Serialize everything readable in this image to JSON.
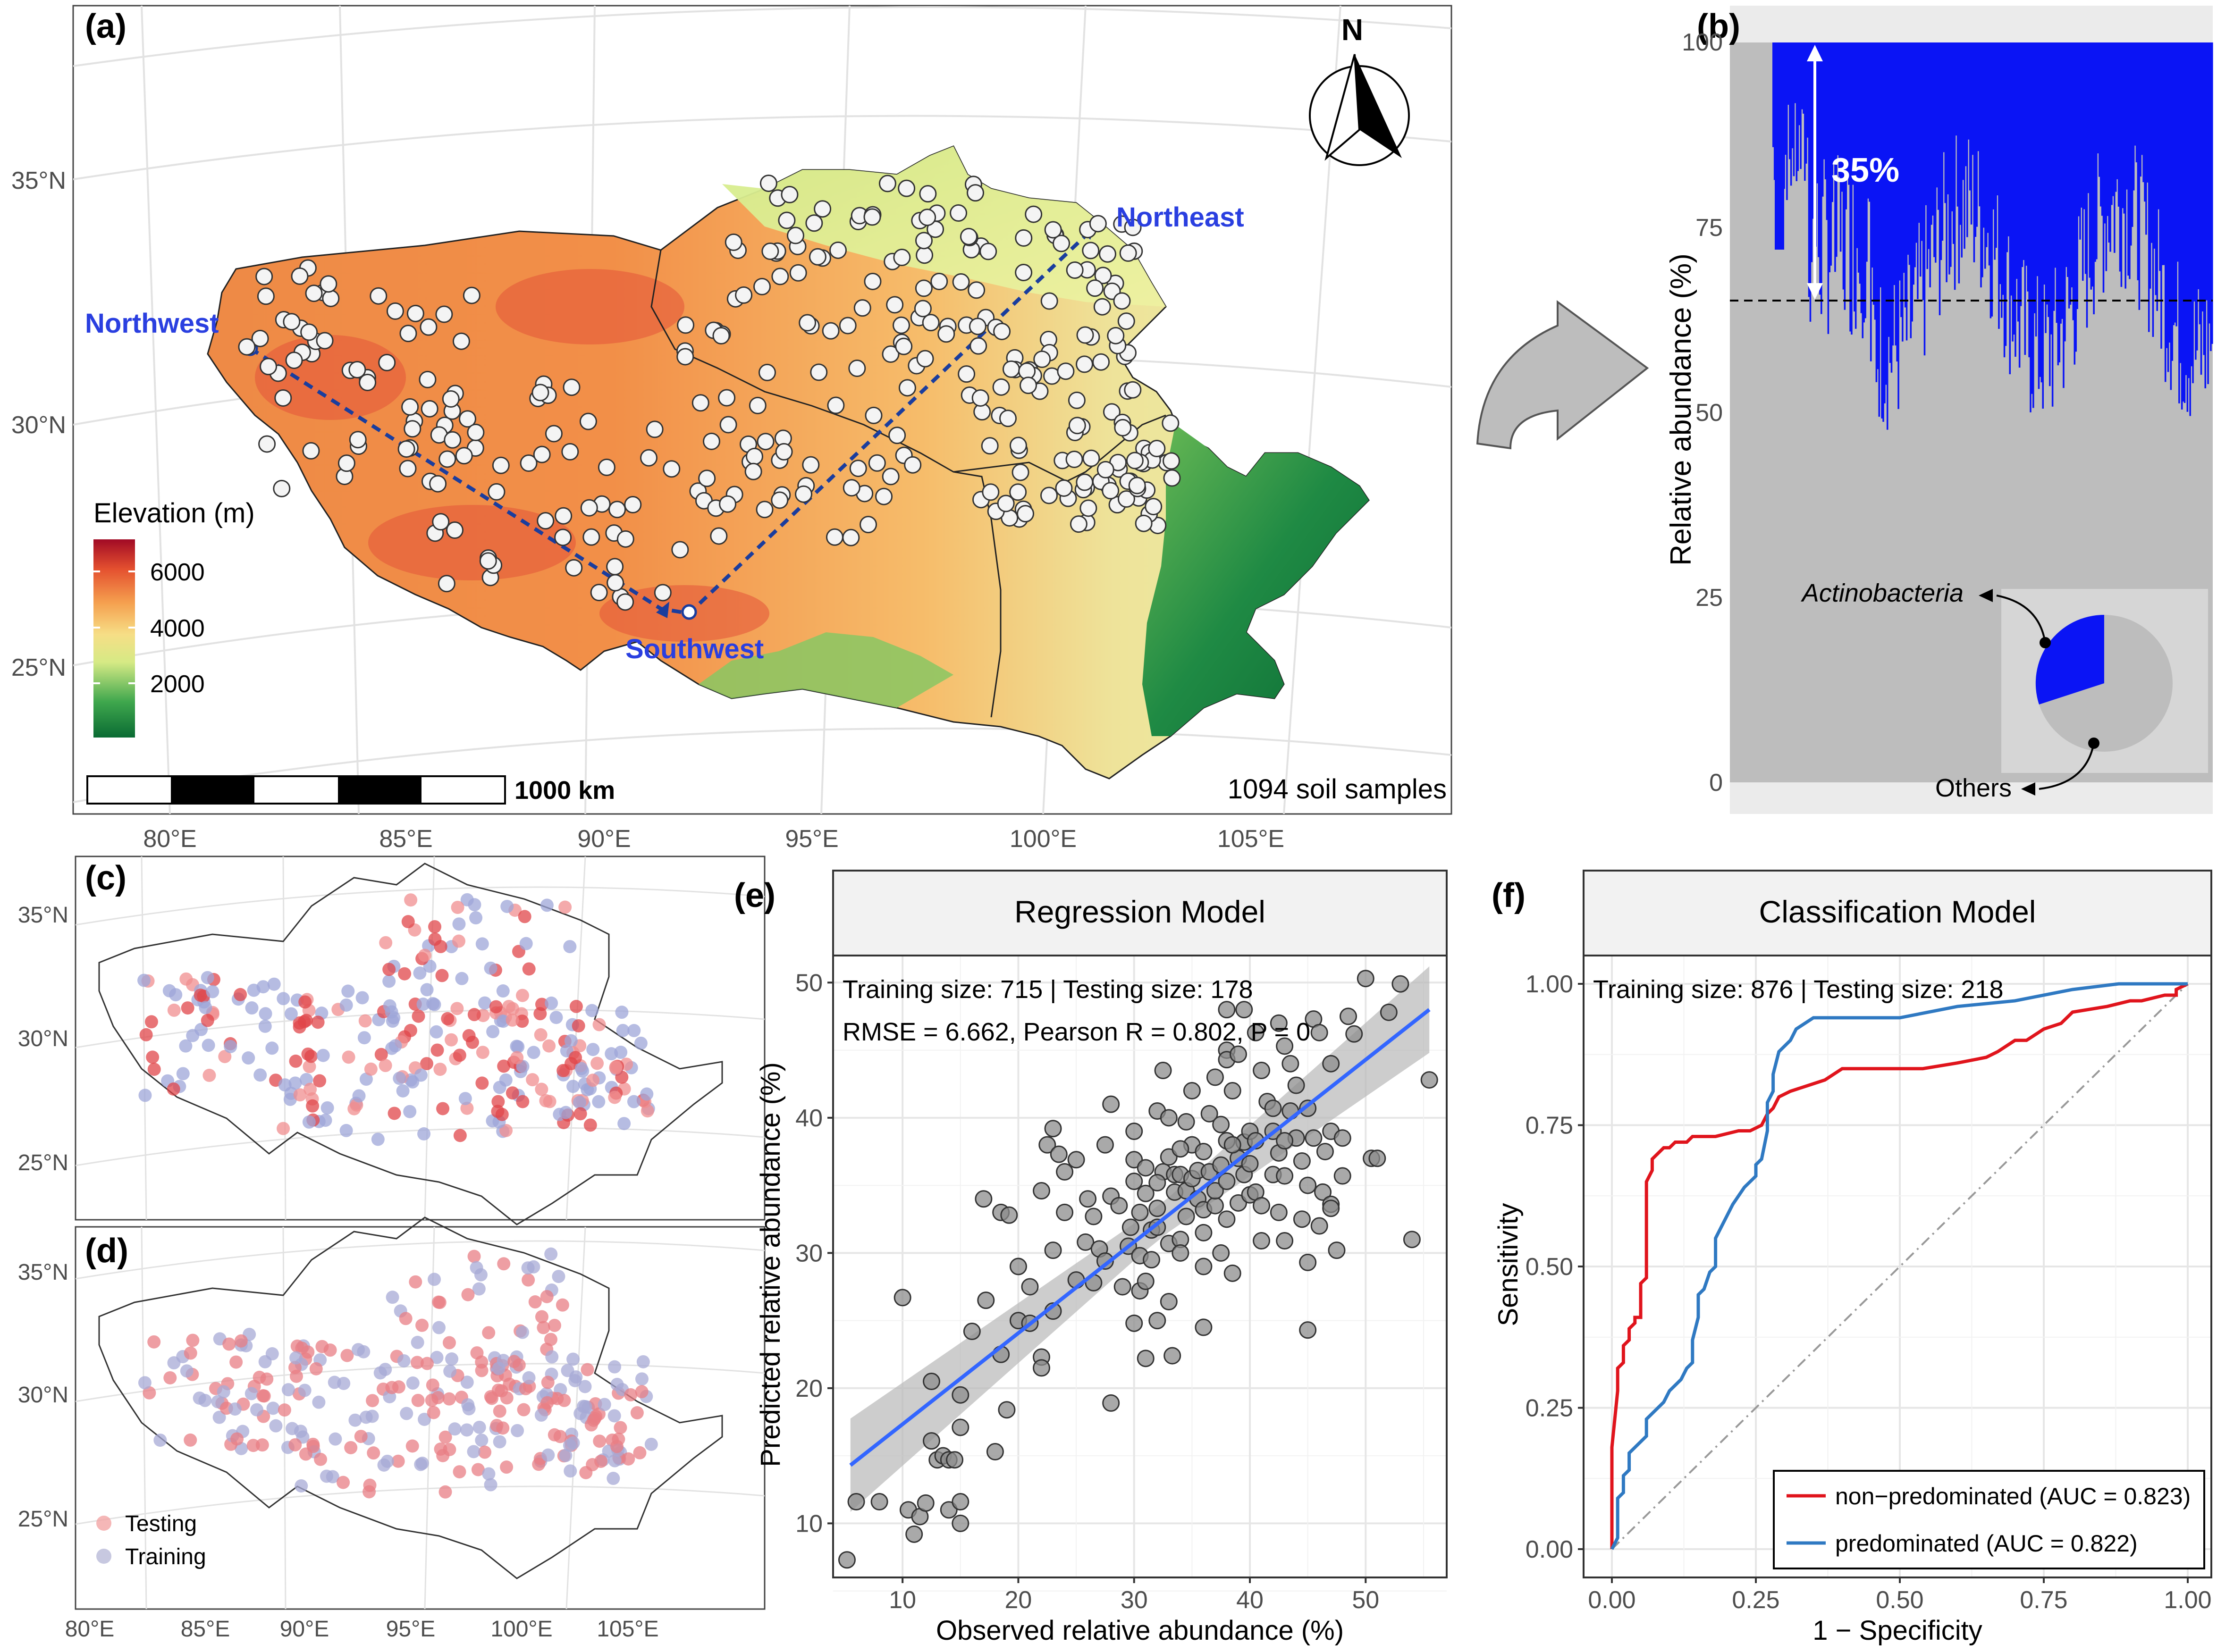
{
  "panels": {
    "a": {
      "label": "(a)",
      "north": "N",
      "legend_title": "Elevation (m)",
      "legend_ticks": [
        "6000",
        "4000",
        "2000"
      ],
      "scale_label": "1000 km",
      "samples_text": "1094 soil samples",
      "region_labels": {
        "nw": "Northwest",
        "ne": "Northeast",
        "sw": "Southwest"
      },
      "lat_ticks": [
        "35°N",
        "30°N",
        "25°N"
      ],
      "lon_ticks": [
        "80°E",
        "85°E",
        "90°E",
        "95°E",
        "100°E",
        "105°E"
      ]
    },
    "b": {
      "label": "(b)",
      "ylabel": "Relative abundance (%)",
      "yticks": [
        "100",
        "75",
        "50",
        "25",
        "0"
      ],
      "arrow_label": "35%",
      "pie_label_top": "Actinobacteria",
      "pie_label_bottom": "Others"
    },
    "c": {
      "label": "(c)",
      "lat_ticks": [
        "35°N",
        "30°N",
        "25°N"
      ]
    },
    "d": {
      "label": "(d)",
      "lat_ticks": [
        "35°N",
        "30°N",
        "25°N"
      ],
      "lon_ticks": [
        "80°E",
        "85°E",
        "90°E",
        "95°E",
        "100°E",
        "105°E"
      ],
      "legend": [
        "Testing",
        "Training"
      ]
    },
    "e": {
      "label": "(e)",
      "strip_title": "Regression Model",
      "line1": "Training size: 715 | Testing  size: 178",
      "line2": "RMSE = 6.662, Pearson R = 0.802, P = 0",
      "xlabel": "Observed relative abundance (%)",
      "ylabel": "Predicted  relative abundance (%)",
      "xticks": [
        "10",
        "20",
        "30",
        "40",
        "50"
      ],
      "yticks": [
        "10",
        "20",
        "30",
        "40",
        "50"
      ]
    },
    "f": {
      "label": "(f)",
      "strip_title": "Classification Model",
      "line1": "Training size: 876 | Testing  size: 218",
      "xlabel": "1 − Specificity",
      "ylabel": "Sensitivity",
      "xticks": [
        "0.00",
        "0.25",
        "0.50",
        "0.75",
        "1.00"
      ],
      "yticks": [
        "1.00",
        "0.75",
        "0.50",
        "0.25",
        "0.00"
      ],
      "legend": [
        "non−predominated (AUC = 0.823)",
        "predominated (AUC = 0.822)"
      ]
    }
  },
  "colors": {
    "blue": "#0a14f5",
    "gray": "#bfbfbf",
    "roc_red": "#e0141c",
    "roc_blue": "#2f79c2",
    "fit_line": "#3366ff",
    "region_text": "#2a3fe0"
  },
  "chart_data": [
    {
      "type": "scatter",
      "title": "Regression Model",
      "xlabel": "Observed relative abundance (%)",
      "ylabel": "Predicted  relative abundance (%)",
      "xlim": [
        4,
        57
      ],
      "ylim": [
        6,
        52
      ],
      "fit": {
        "x": [
          5.5,
          55.5
        ],
        "y": [
          14.3,
          48.0
        ]
      },
      "points": [
        [
          5.2,
          7.3
        ],
        [
          6,
          11.6
        ],
        [
          8,
          11.6
        ],
        [
          10.5,
          11
        ],
        [
          11,
          9.2
        ],
        [
          11.5,
          10.5
        ],
        [
          12,
          11.5
        ],
        [
          10,
          26.7
        ],
        [
          12.5,
          20.5
        ],
        [
          12.5,
          16.1
        ],
        [
          13,
          14.7
        ],
        [
          13.5,
          15
        ],
        [
          14,
          14.7
        ],
        [
          14.5,
          14.7
        ],
        [
          14,
          11
        ],
        [
          15,
          11.6
        ],
        [
          15,
          10
        ],
        [
          15,
          17.1
        ],
        [
          15,
          19.5
        ],
        [
          16,
          24.2
        ],
        [
          17,
          34
        ],
        [
          17.2,
          26.5
        ],
        [
          18,
          15.3
        ],
        [
          18.5,
          22.5
        ],
        [
          18.5,
          33
        ],
        [
          19,
          18.4
        ],
        [
          19.2,
          32.8
        ],
        [
          20,
          25
        ],
        [
          20,
          29
        ],
        [
          21,
          24.8
        ],
        [
          21,
          27.5
        ],
        [
          22,
          22.3
        ],
        [
          22,
          21.5
        ],
        [
          22,
          34.6
        ],
        [
          22.5,
          38
        ],
        [
          23,
          30.2
        ],
        [
          23,
          25.7
        ],
        [
          23,
          39.2
        ],
        [
          23.5,
          37.3
        ],
        [
          24,
          33
        ],
        [
          24,
          36
        ],
        [
          25,
          36.9
        ],
        [
          25,
          28
        ],
        [
          25.8,
          30.8
        ],
        [
          26,
          34
        ],
        [
          26.5,
          32.7
        ],
        [
          26.5,
          27.8
        ],
        [
          27,
          30.3
        ],
        [
          27.5,
          29.4
        ],
        [
          28,
          18.9
        ],
        [
          27.5,
          38
        ],
        [
          28,
          41
        ],
        [
          28,
          34.2
        ],
        [
          28.7,
          33.5
        ],
        [
          29,
          27.5
        ],
        [
          29.5,
          30.5
        ],
        [
          29.7,
          31.9
        ],
        [
          30,
          36.9
        ],
        [
          30,
          35.3
        ],
        [
          30,
          39
        ],
        [
          30.5,
          33
        ],
        [
          30.5,
          27.2
        ],
        [
          30,
          24.8
        ],
        [
          31,
          34.4
        ],
        [
          31,
          27.9
        ],
        [
          31.5,
          31.7
        ],
        [
          31,
          22.2
        ],
        [
          32,
          25
        ],
        [
          32,
          31.9
        ],
        [
          32,
          33.3
        ],
        [
          32.5,
          36
        ],
        [
          32,
          40.5
        ],
        [
          32.5,
          43.5
        ],
        [
          33,
          37.1
        ],
        [
          33,
          30.7
        ],
        [
          33,
          26.4
        ],
        [
          33.3,
          22.4
        ],
        [
          33.5,
          34.5
        ],
        [
          33.5,
          35.8
        ],
        [
          34,
          35.8
        ],
        [
          34,
          31
        ],
        [
          34,
          30
        ],
        [
          34.5,
          32.7
        ],
        [
          34.5,
          34.6
        ],
        [
          34.5,
          39.7
        ],
        [
          35,
          35.5
        ],
        [
          35,
          38
        ],
        [
          35.5,
          36.1
        ],
        [
          35.5,
          34
        ],
        [
          36,
          29
        ],
        [
          36,
          37.5
        ],
        [
          36,
          33.2
        ],
        [
          36,
          31.5
        ],
        [
          36,
          24.5
        ],
        [
          36.5,
          36
        ],
        [
          36.5,
          40.3
        ],
        [
          37,
          43
        ],
        [
          37,
          33.5
        ],
        [
          37,
          34.6
        ],
        [
          37.5,
          36.5
        ],
        [
          37.5,
          39.5
        ],
        [
          38,
          45
        ],
        [
          38,
          44.3
        ],
        [
          38,
          38.3
        ],
        [
          38,
          35.3
        ],
        [
          38,
          32.5
        ],
        [
          38.5,
          28.5
        ],
        [
          38.5,
          42
        ],
        [
          39,
          37
        ],
        [
          39,
          33.7
        ],
        [
          39,
          44.7
        ],
        [
          39.5,
          35.8
        ],
        [
          39.5,
          38.2
        ],
        [
          40,
          34.3
        ],
        [
          40,
          36.6
        ],
        [
          40,
          39
        ],
        [
          40.5,
          34.5
        ],
        [
          40.5,
          38.3
        ],
        [
          41,
          33.5
        ],
        [
          41,
          43.5
        ],
        [
          41,
          30.9
        ],
        [
          41.5,
          41.2
        ],
        [
          42,
          35.8
        ],
        [
          42,
          39
        ],
        [
          42,
          40.7
        ],
        [
          42.5,
          33
        ],
        [
          42.5,
          37.4
        ],
        [
          43,
          45.3
        ],
        [
          43,
          35.7
        ],
        [
          43,
          30.9
        ],
        [
          43.5,
          40.5
        ],
        [
          43.5,
          44
        ],
        [
          44,
          38.5
        ],
        [
          44,
          42.4
        ],
        [
          44.5,
          32.5
        ],
        [
          44.5,
          36.8
        ],
        [
          45,
          24.3
        ],
        [
          45,
          29.3
        ],
        [
          45,
          35
        ],
        [
          45,
          40.7
        ],
        [
          45.5,
          38.5
        ],
        [
          45.5,
          47.3
        ],
        [
          46,
          46.3
        ],
        [
          46,
          32
        ],
        [
          46.3,
          34.5
        ],
        [
          46.5,
          37.5
        ],
        [
          47,
          39
        ],
        [
          47,
          33.6
        ],
        [
          47,
          33.3
        ],
        [
          47,
          44
        ],
        [
          47.5,
          30.2
        ],
        [
          48,
          38.5
        ],
        [
          48,
          35.7
        ],
        [
          49,
          46.2
        ],
        [
          50,
          50.3
        ],
        [
          50.5,
          37
        ],
        [
          51,
          37
        ],
        [
          52,
          47.8
        ],
        [
          53,
          49.9
        ],
        [
          54,
          31
        ],
        [
          55.5,
          42.8
        ],
        [
          48.5,
          47.5
        ],
        [
          42.5,
          47
        ],
        [
          40.5,
          46.3
        ],
        [
          39.5,
          48
        ],
        [
          38,
          48
        ],
        [
          38.5,
          38
        ],
        [
          37.5,
          30
        ],
        [
          34,
          37.7
        ],
        [
          31,
          36.3
        ],
        [
          32,
          35.2
        ],
        [
          30.5,
          29.8
        ],
        [
          31.5,
          29.5
        ],
        [
          43,
          38.3
        ],
        [
          35,
          42
        ],
        [
          33,
          40
        ]
      ]
    },
    {
      "type": "line",
      "title": "Classification Model",
      "xlabel": "1 − Specificity",
      "ylabel": "Sensitivity",
      "xlim": [
        0,
        1
      ],
      "ylim": [
        0,
        1
      ],
      "series": [
        {
          "name": "non−predominated (AUC = 0.823)",
          "x": [
            0,
            0,
            0.01,
            0.01,
            0.02,
            0.02,
            0.03,
            0.03,
            0.04,
            0.04,
            0.05,
            0.05,
            0.06,
            0.06,
            0.07,
            0.07,
            0.08,
            0.09,
            0.1,
            0.11,
            0.13,
            0.14,
            0.18,
            0.22,
            0.24,
            0.26,
            0.27,
            0.28,
            0.29,
            0.31,
            0.34,
            0.37,
            0.4,
            0.46,
            0.54,
            0.6,
            0.65,
            0.67,
            0.7,
            0.72,
            0.75,
            0.78,
            0.8,
            0.86,
            0.9,
            0.92,
            0.96,
            0.98,
            0.98,
            1
          ],
          "y": [
            0,
            0.18,
            0.28,
            0.32,
            0.33,
            0.36,
            0.37,
            0.39,
            0.4,
            0.41,
            0.41,
            0.47,
            0.48,
            0.65,
            0.67,
            0.69,
            0.7,
            0.71,
            0.71,
            0.72,
            0.72,
            0.73,
            0.73,
            0.74,
            0.74,
            0.75,
            0.77,
            0.78,
            0.8,
            0.81,
            0.82,
            0.83,
            0.85,
            0.85,
            0.85,
            0.86,
            0.87,
            0.88,
            0.9,
            0.9,
            0.92,
            0.93,
            0.95,
            0.96,
            0.97,
            0.97,
            0.98,
            0.98,
            0.99,
            1
          ]
        },
        {
          "name": "predominated (AUC = 0.822)",
          "x": [
            0,
            0.01,
            0.01,
            0.02,
            0.02,
            0.03,
            0.03,
            0.04,
            0.05,
            0.06,
            0.06,
            0.07,
            0.08,
            0.09,
            0.1,
            0.12,
            0.13,
            0.14,
            0.14,
            0.15,
            0.15,
            0.16,
            0.17,
            0.18,
            0.18,
            0.19,
            0.2,
            0.21,
            0.23,
            0.25,
            0.25,
            0.26,
            0.27,
            0.27,
            0.28,
            0.28,
            0.29,
            0.31,
            0.32,
            0.35,
            0.42,
            0.5,
            0.6,
            0.7,
            0.75,
            0.8,
            0.88,
            0.92,
            1
          ],
          "y": [
            0,
            0.02,
            0.09,
            0.1,
            0.13,
            0.14,
            0.17,
            0.18,
            0.19,
            0.2,
            0.23,
            0.24,
            0.25,
            0.26,
            0.28,
            0.3,
            0.32,
            0.33,
            0.37,
            0.41,
            0.45,
            0.46,
            0.49,
            0.5,
            0.55,
            0.57,
            0.59,
            0.61,
            0.64,
            0.66,
            0.68,
            0.69,
            0.74,
            0.79,
            0.81,
            0.84,
            0.88,
            0.9,
            0.92,
            0.94,
            0.94,
            0.94,
            0.96,
            0.97,
            0.98,
            0.99,
            1,
            1,
            1
          ]
        }
      ]
    },
    {
      "type": "bar",
      "title": "",
      "ylabel": "Relative abundance (%)",
      "ylim": [
        -5,
        105
      ],
      "threshold": 65,
      "inset_pie": {
        "labels": [
          "Actinobacteria",
          "Others"
        ],
        "values": [
          35,
          65
        ]
      }
    }
  ]
}
